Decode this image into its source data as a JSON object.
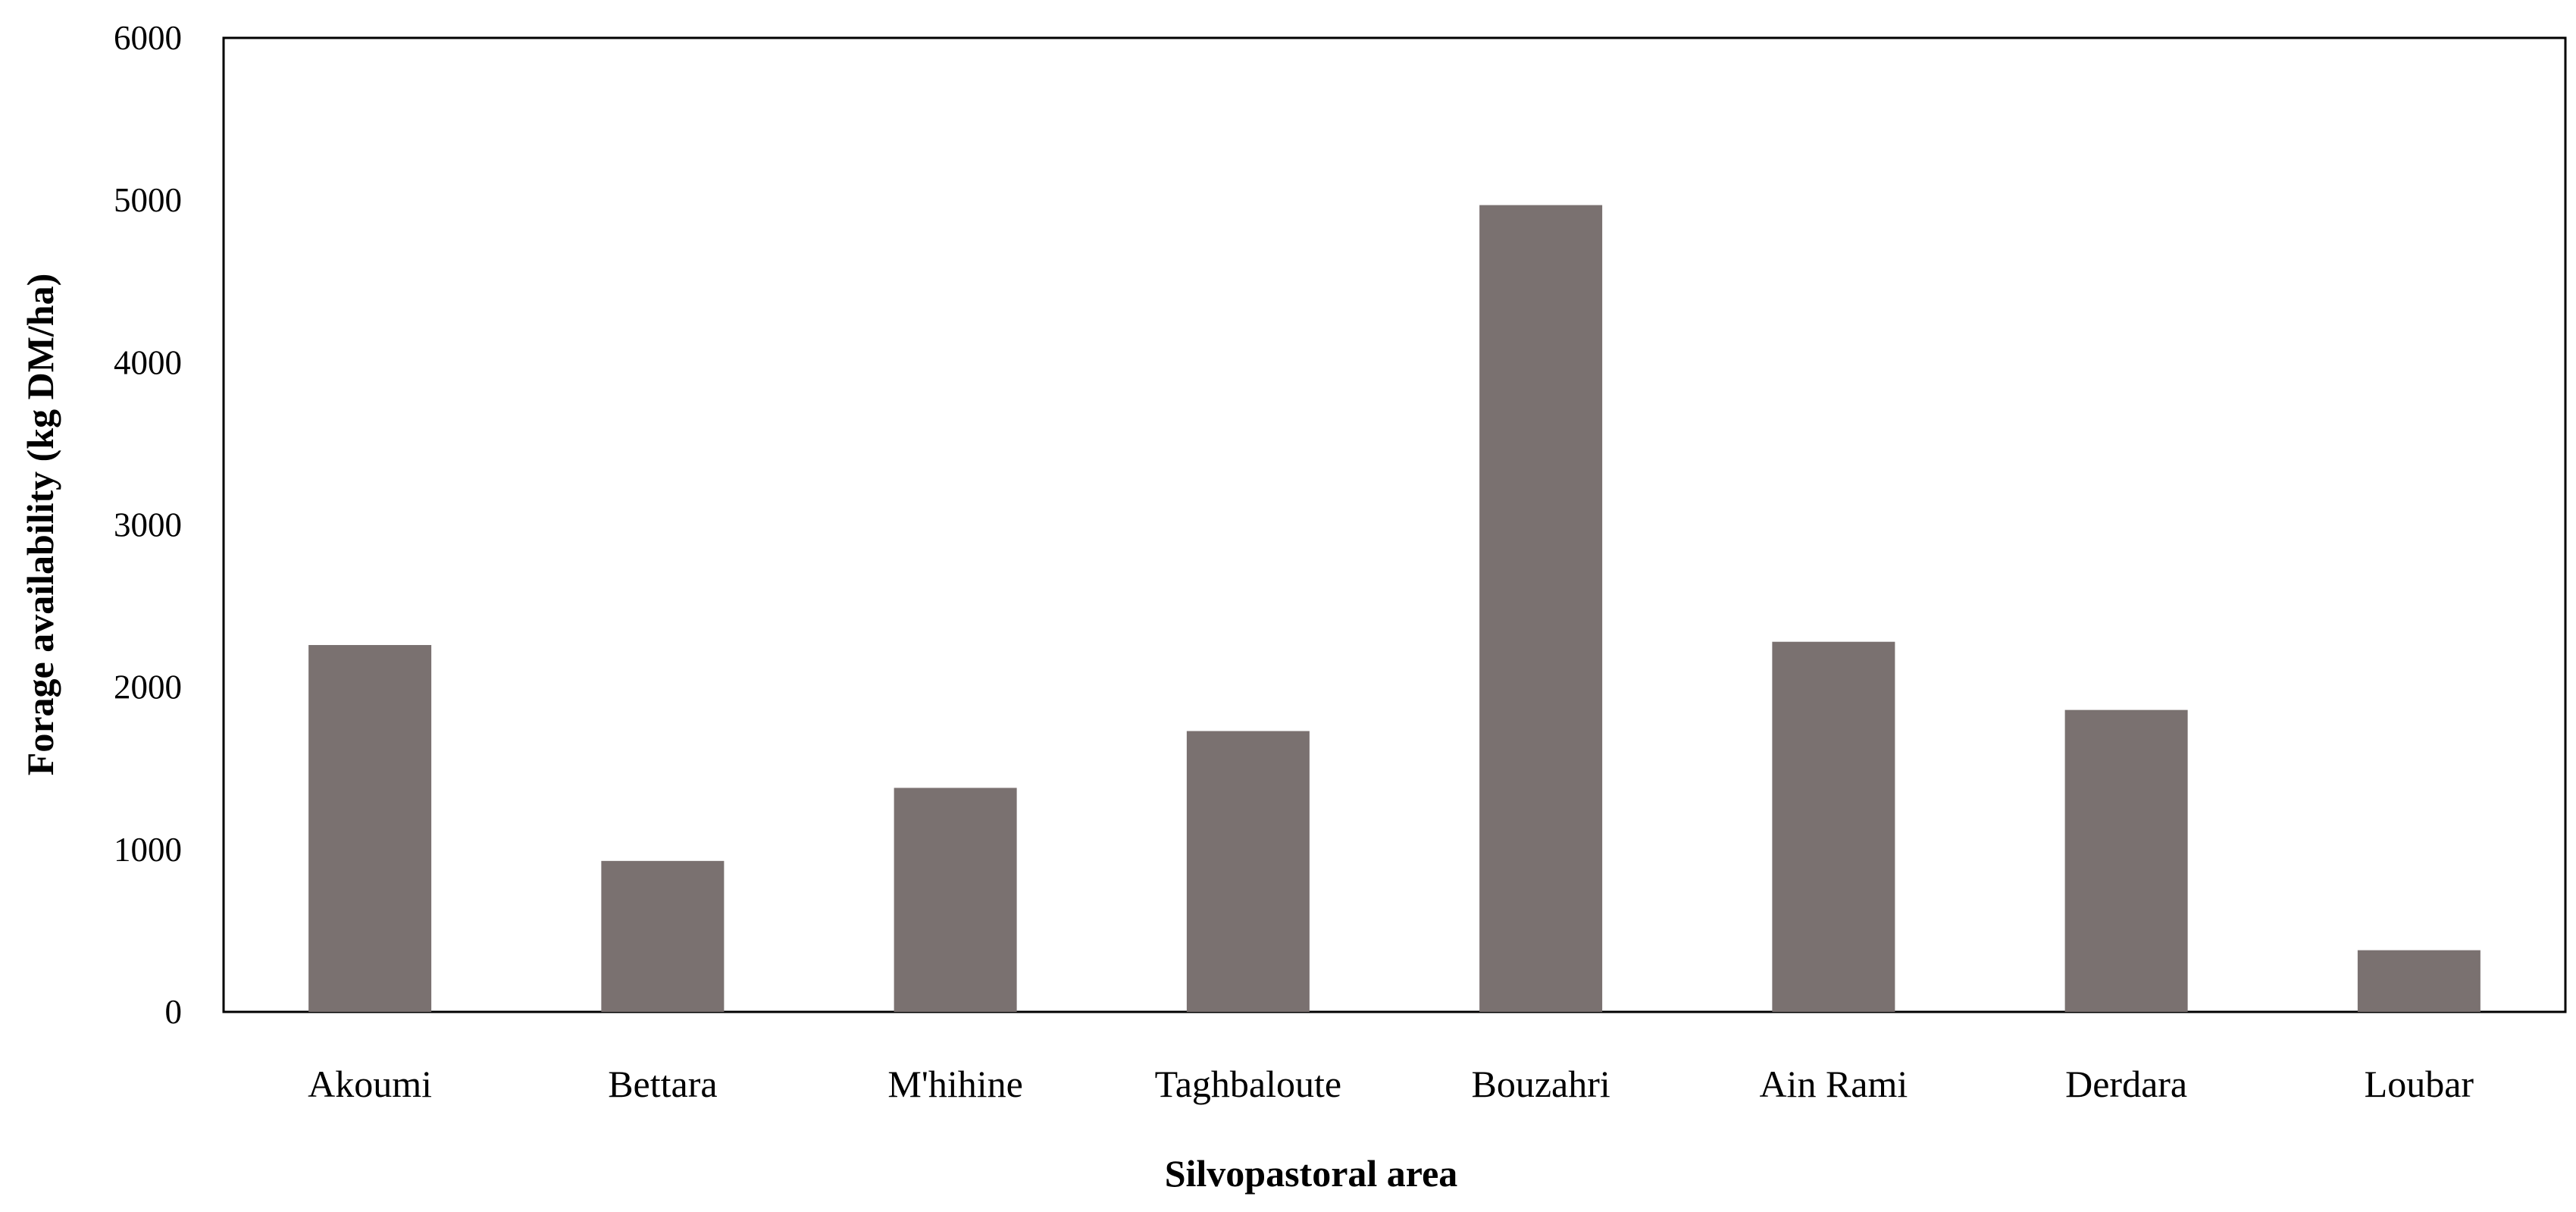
{
  "chart_data": {
    "type": "bar",
    "title": "",
    "xlabel": "Silvopastoral area",
    "ylabel": "Forage availability (kg DM/ha)",
    "categories": [
      "Akoumi",
      "Bettara",
      "M'hihine",
      "Taghbaloute",
      "Bouzahri",
      "Ain Rami",
      "Derdara",
      "Loubar"
    ],
    "values": [
      2260,
      930,
      1380,
      1730,
      4970,
      2280,
      1860,
      380
    ],
    "ylim": [
      0,
      6000
    ],
    "yticks": [
      0,
      1000,
      2000,
      3000,
      4000,
      5000,
      6000
    ],
    "grid": false,
    "legend": "none",
    "bar_color": "#7a7170"
  }
}
